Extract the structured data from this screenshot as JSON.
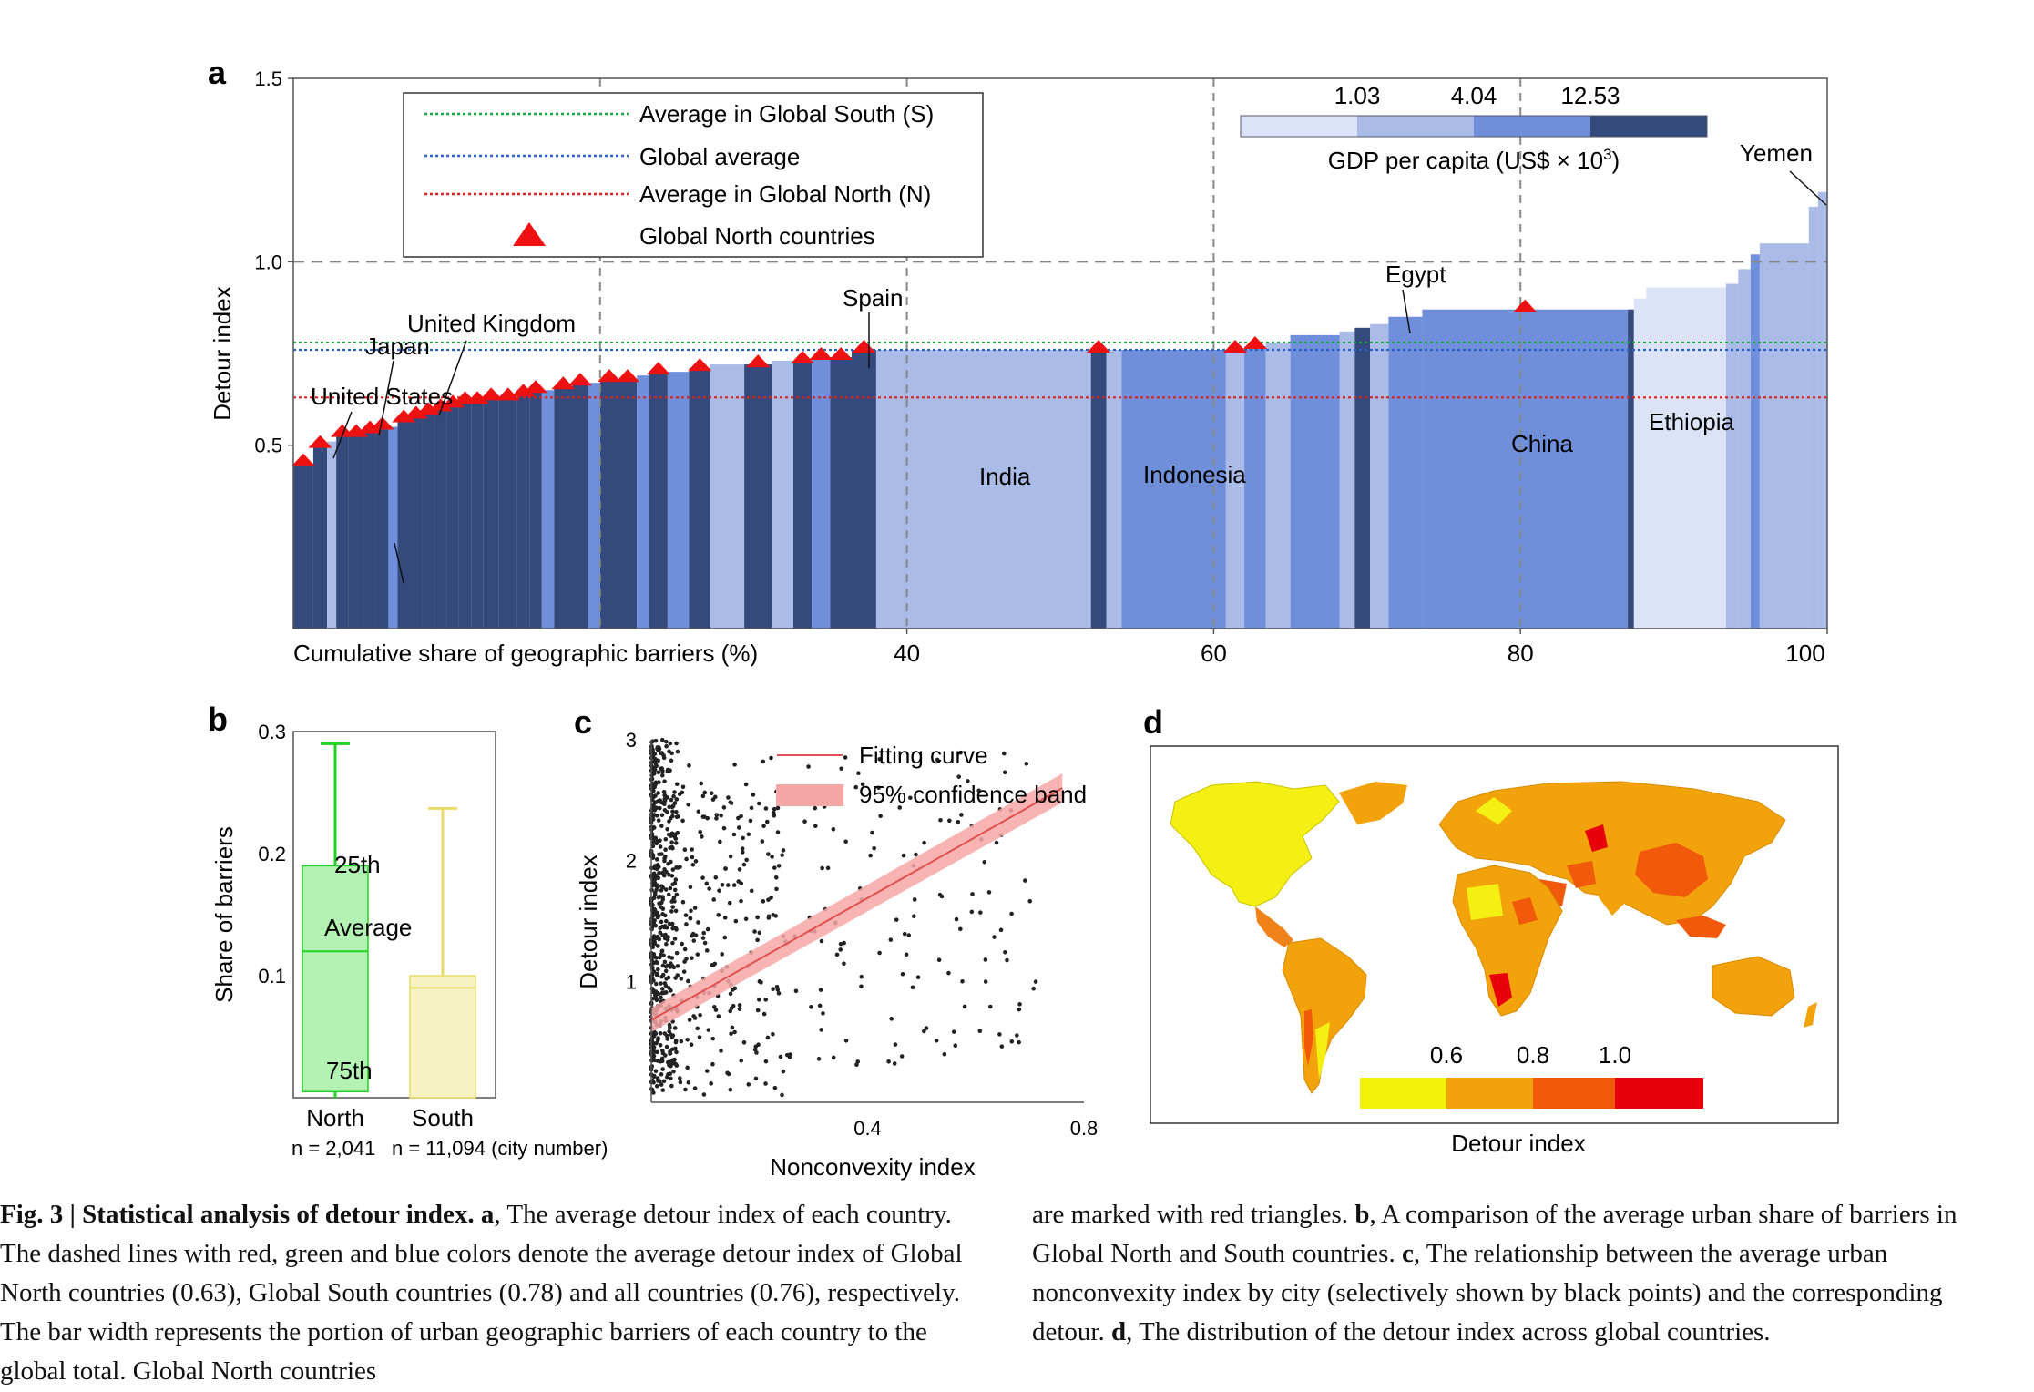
{
  "panel_labels": {
    "a": "a",
    "b": "b",
    "c": "c",
    "d": "d"
  },
  "chart_data": [
    {
      "id": "a",
      "type": "bar",
      "xlabel": "Cumulative share of geographic barriers (%)",
      "ylabel": "Detour index",
      "xlim": [
        0,
        100
      ],
      "ylim": [
        0,
        1.5
      ],
      "x_ticks": [
        "40",
        "60",
        "80",
        "100"
      ],
      "x_tick_values": [
        40,
        60,
        80,
        100
      ],
      "y_ticks": [
        "0.5",
        "1.0",
        "1.5"
      ],
      "y_tick_values": [
        0.5,
        1.0,
        1.5
      ],
      "reference_lines": [
        {
          "label": "Average in Global South (S)",
          "value": 0.78,
          "color": "#14a83c"
        },
        {
          "label": "Global average",
          "value": 0.76,
          "color": "#2a5fc7"
        },
        {
          "label": "Average in Global North (N)",
          "value": 0.63,
          "color": "#e0201c"
        }
      ],
      "marker_legend": "Global North countries",
      "gdp_legend": {
        "title": "GDP per capita (US$ × 10",
        "title_sup": "3",
        "title_end": ")",
        "ticks": [
          "1.03",
          "4.04",
          "12.53"
        ],
        "colors": [
          "#dde3f6",
          "#aabbe8",
          "#6f8fdb",
          "#34497c"
        ]
      },
      "bars": [
        {
          "x0": 0,
          "x1": 1.3,
          "y": 0.45,
          "c": 3,
          "n": true
        },
        {
          "x0": 1.3,
          "x1": 2.2,
          "y": 0.5,
          "c": 3,
          "n": true
        },
        {
          "x0": 2.2,
          "x1": 2.8,
          "y": 0.51,
          "c": 1,
          "n": false
        },
        {
          "x0": 2.8,
          "x1": 3.6,
          "y": 0.53,
          "c": 3,
          "n": true
        },
        {
          "x0": 3.6,
          "x1": 4.6,
          "y": 0.53,
          "c": 3,
          "n": true
        },
        {
          "x0": 4.6,
          "x1": 5.4,
          "y": 0.54,
          "c": 3,
          "n": true
        },
        {
          "x0": 5.4,
          "x1": 6.2,
          "y": 0.55,
          "c": 3,
          "n": true
        },
        {
          "x0": 6.2,
          "x1": 6.8,
          "y": 0.55,
          "c": 2,
          "n": false
        },
        {
          "x0": 6.8,
          "x1": 7.6,
          "y": 0.57,
          "c": 3,
          "n": true
        },
        {
          "x0": 7.6,
          "x1": 8.4,
          "y": 0.58,
          "c": 3,
          "n": true
        },
        {
          "x0": 8.4,
          "x1": 9.2,
          "y": 0.59,
          "c": 3,
          "n": true
        },
        {
          "x0": 9.2,
          "x1": 10.0,
          "y": 0.6,
          "c": 3,
          "n": true
        },
        {
          "x0": 10.0,
          "x1": 10.8,
          "y": 0.61,
          "c": 3,
          "n": true
        },
        {
          "x0": 10.8,
          "x1": 11.6,
          "y": 0.62,
          "c": 3,
          "n": true
        },
        {
          "x0": 11.6,
          "x1": 12.4,
          "y": 0.62,
          "c": 3,
          "n": true
        },
        {
          "x0": 12.4,
          "x1": 13.4,
          "y": 0.63,
          "c": 3,
          "n": true
        },
        {
          "x0": 13.4,
          "x1": 14.6,
          "y": 0.63,
          "c": 3,
          "n": true
        },
        {
          "x0": 14.6,
          "x1": 15.4,
          "y": 0.64,
          "c": 3,
          "n": true
        },
        {
          "x0": 15.4,
          "x1": 16.2,
          "y": 0.65,
          "c": 3,
          "n": true
        },
        {
          "x0": 16.2,
          "x1": 17.0,
          "y": 0.65,
          "c": 2,
          "n": false
        },
        {
          "x0": 17.0,
          "x1": 18.2,
          "y": 0.66,
          "c": 3,
          "n": true
        },
        {
          "x0": 18.2,
          "x1": 19.2,
          "y": 0.67,
          "c": 3,
          "n": true
        },
        {
          "x0": 19.2,
          "x1": 20.0,
          "y": 0.67,
          "c": 2,
          "n": false
        },
        {
          "x0": 20.0,
          "x1": 21.2,
          "y": 0.68,
          "c": 3,
          "n": true
        },
        {
          "x0": 21.2,
          "x1": 22.4,
          "y": 0.68,
          "c": 3,
          "n": true
        },
        {
          "x0": 22.4,
          "x1": 23.2,
          "y": 0.69,
          "c": 2,
          "n": false
        },
        {
          "x0": 23.2,
          "x1": 24.4,
          "y": 0.7,
          "c": 3,
          "n": true
        },
        {
          "x0": 24.4,
          "x1": 25.8,
          "y": 0.7,
          "c": 2,
          "n": false
        },
        {
          "x0": 25.8,
          "x1": 27.2,
          "y": 0.71,
          "c": 3,
          "n": true
        },
        {
          "x0": 27.2,
          "x1": 29.4,
          "y": 0.72,
          "c": 1,
          "n": false
        },
        {
          "x0": 29.4,
          "x1": 31.2,
          "y": 0.72,
          "c": 3,
          "n": true
        },
        {
          "x0": 31.2,
          "x1": 32.6,
          "y": 0.73,
          "c": 1,
          "n": false
        },
        {
          "x0": 32.6,
          "x1": 33.8,
          "y": 0.73,
          "c": 3,
          "n": true
        },
        {
          "x0": 33.8,
          "x1": 35.0,
          "y": 0.74,
          "c": 2,
          "n": true
        },
        {
          "x0": 35.0,
          "x1": 36.4,
          "y": 0.74,
          "c": 3,
          "n": true
        },
        {
          "x0": 36.4,
          "x1": 38.0,
          "y": 0.76,
          "c": 3,
          "n": true
        },
        {
          "x0": 38.0,
          "x1": 52.0,
          "y": 0.76,
          "c": 1,
          "n": false
        },
        {
          "x0": 52.0,
          "x1": 53.0,
          "y": 0.76,
          "c": 3,
          "n": true
        },
        {
          "x0": 53.0,
          "x1": 54.0,
          "y": 0.76,
          "c": 1,
          "n": false
        },
        {
          "x0": 54.0,
          "x1": 60.8,
          "y": 0.76,
          "c": 2,
          "n": false
        },
        {
          "x0": 60.8,
          "x1": 62.0,
          "y": 0.76,
          "c": 1,
          "n": true
        },
        {
          "x0": 62.0,
          "x1": 63.4,
          "y": 0.77,
          "c": 2,
          "n": true
        },
        {
          "x0": 63.4,
          "x1": 65.0,
          "y": 0.78,
          "c": 1,
          "n": false
        },
        {
          "x0": 65.0,
          "x1": 68.2,
          "y": 0.8,
          "c": 2,
          "n": false
        },
        {
          "x0": 68.2,
          "x1": 69.2,
          "y": 0.81,
          "c": 1,
          "n": false
        },
        {
          "x0": 69.2,
          "x1": 70.2,
          "y": 0.82,
          "c": 3,
          "n": false
        },
        {
          "x0": 70.2,
          "x1": 71.4,
          "y": 0.83,
          "c": 1,
          "n": false
        },
        {
          "x0": 71.4,
          "x1": 73.6,
          "y": 0.85,
          "c": 2,
          "n": false
        },
        {
          "x0": 73.6,
          "x1": 87.0,
          "y": 0.87,
          "c": 2,
          "n": true
        },
        {
          "x0": 87.0,
          "x1": 87.4,
          "y": 0.87,
          "c": 3,
          "n": false
        },
        {
          "x0": 87.4,
          "x1": 88.2,
          "y": 0.9,
          "c": 0,
          "n": false
        },
        {
          "x0": 88.2,
          "x1": 93.4,
          "y": 0.93,
          "c": 0,
          "n": false
        },
        {
          "x0": 93.4,
          "x1": 94.2,
          "y": 0.94,
          "c": 1,
          "n": false
        },
        {
          "x0": 94.2,
          "x1": 95.0,
          "y": 0.98,
          "c": 1,
          "n": false
        },
        {
          "x0": 95.0,
          "x1": 95.6,
          "y": 1.02,
          "c": 2,
          "n": false
        },
        {
          "x0": 95.6,
          "x1": 98.8,
          "y": 1.05,
          "c": 1,
          "n": false
        },
        {
          "x0": 98.8,
          "x1": 99.4,
          "y": 1.15,
          "c": 1,
          "n": false
        },
        {
          "x0": 99.4,
          "x1": 100,
          "y": 1.19,
          "c": 1,
          "n": false
        }
      ],
      "country_labels": [
        {
          "text": "United Kingdom"
        },
        {
          "text": "Japan"
        },
        {
          "text": "United States"
        },
        {
          "text": "Spain"
        },
        {
          "text": "India"
        },
        {
          "text": "Indonesia"
        },
        {
          "text": "Egypt"
        },
        {
          "text": "China"
        },
        {
          "text": "Ethiopia"
        },
        {
          "text": "Yemen"
        }
      ]
    },
    {
      "id": "b",
      "type": "box",
      "ylabel": "Share of barriers",
      "ylim": [
        0,
        0.3
      ],
      "y_ticks": [
        "0.1",
        "0.2",
        "0.3"
      ],
      "y_tick_values": [
        0.1,
        0.2,
        0.3
      ],
      "groups": [
        {
          "name": "North",
          "n_label": "n = 2,041",
          "q1": 0.005,
          "q3": 0.19,
          "mean": 0.12,
          "whisker_low": 0.0,
          "whisker_high": 0.29,
          "color": "#22d322",
          "fill": "#a6f0a6"
        },
        {
          "name": "South",
          "n_label": "n = 11,094 (city number)",
          "q1": 0.0,
          "q3": 0.1,
          "mean": 0.09,
          "whisker_low": 0.0,
          "whisker_high": 0.237,
          "color": "#e8dc6a",
          "fill": "#f6f0b6"
        }
      ],
      "annotations": [
        "25th",
        "Average",
        "75th"
      ]
    },
    {
      "id": "c",
      "type": "scatter",
      "xlabel": "Nonconvexity index",
      "ylabel": "Detour index",
      "xlim": [
        0,
        0.8
      ],
      "ylim": [
        0,
        3
      ],
      "x_ticks": [
        "0.4",
        "0.8"
      ],
      "x_tick_values": [
        0.4,
        0.8
      ],
      "y_ticks": [
        "1",
        "2",
        "3"
      ],
      "y_tick_values": [
        1,
        2,
        3
      ],
      "fit": {
        "x0": 0,
        "y0": 0.68,
        "x1": 0.76,
        "y1": 2.6
      },
      "legend": [
        "Fitting curve",
        "95% confidence band"
      ]
    },
    {
      "id": "d",
      "type": "map",
      "legend_title": "Detour index",
      "legend_ticks": [
        "0.6",
        "0.8",
        "1.0"
      ],
      "colors": [
        "#f2f20a",
        "#f2a20a",
        "#f05a0a",
        "#e8000a"
      ]
    }
  ],
  "caption": {
    "fig_label": "Fig. 3 | Statistical analysis of detour index.",
    "a_label": "a",
    "a_text": ", The average detour index of each country. The dashed lines with red, green and blue colors denote the average detour index of Global North countries (0.63), Global South countries (0.78) and all countries (0.76), respectively. The bar width represents the portion of urban geographic barriers of each country to the global total. Global North countries",
    "right_pre": "are marked with red triangles. ",
    "b_label": "b",
    "b_text": ", A comparison of the average urban share of barriers in Global North and South countries. ",
    "c_label": "c",
    "c_text": ", The relationship between the average urban nonconvexity index by city (selectively shown by black points) and the corresponding detour. ",
    "d_label": "d",
    "d_text": ", The distribution of the detour index across global countries."
  }
}
